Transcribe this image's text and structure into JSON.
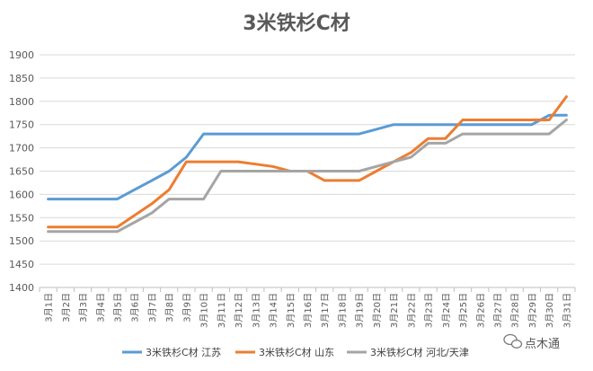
{
  "watermark": {
    "label": "点木通",
    "icon": "wechat-icon"
  },
  "chart_data": {
    "type": "line",
    "title": "3米铁杉C材",
    "xlabel": "",
    "ylabel": "",
    "ylim": [
      1400,
      1900
    ],
    "yticks": [
      1400,
      1450,
      1500,
      1550,
      1600,
      1650,
      1700,
      1750,
      1800,
      1850,
      1900
    ],
    "grid": true,
    "legend_position": "bottom",
    "categories": [
      "3月1日",
      "3月2日",
      "3月3日",
      "3月4日",
      "3月5日",
      "3月6日",
      "3月7日",
      "3月8日",
      "3月9日",
      "3月10日",
      "3月11日",
      "3月12日",
      "3月13日",
      "3月14日",
      "3月15日",
      "3月16日",
      "3月17日",
      "3月18日",
      "3月19日",
      "3月20日",
      "3月21日",
      "3月22日",
      "3月23日",
      "3月24日",
      "3月25日",
      "3月26日",
      "3月27日",
      "3月28日",
      "3月29日",
      "3月30日",
      "3月31日"
    ],
    "series": [
      {
        "name": "3米铁杉C材 江苏",
        "color": "#5B9BD5",
        "values": [
          1590,
          1590,
          1590,
          1590,
          1590,
          1610,
          1630,
          1650,
          1680,
          1730,
          1730,
          1730,
          1730,
          1730,
          1730,
          1730,
          1730,
          1730,
          1730,
          1740,
          1750,
          1750,
          1750,
          1750,
          1750,
          1750,
          1750,
          1750,
          1750,
          1770,
          1770
        ]
      },
      {
        "name": "3米铁杉C材 山东",
        "color": "#ED7D31",
        "values": [
          1530,
          1530,
          1530,
          1530,
          1530,
          1555,
          1580,
          1610,
          1670,
          1670,
          1670,
          1670,
          1665,
          1660,
          1650,
          1650,
          1630,
          1630,
          1630,
          1650,
          1670,
          1690,
          1720,
          1720,
          1760,
          1760,
          1760,
          1760,
          1760,
          1760,
          1810
        ]
      },
      {
        "name": "3米铁杉C材 河北/天津",
        "color": "#A5A5A5",
        "values": [
          1520,
          1520,
          1520,
          1520,
          1520,
          1540,
          1560,
          1590,
          1590,
          1590,
          1650,
          1650,
          1650,
          1650,
          1650,
          1650,
          1650,
          1650,
          1650,
          1660,
          1670,
          1680,
          1710,
          1710,
          1730,
          1730,
          1730,
          1730,
          1730,
          1730,
          1760
        ]
      }
    ]
  }
}
